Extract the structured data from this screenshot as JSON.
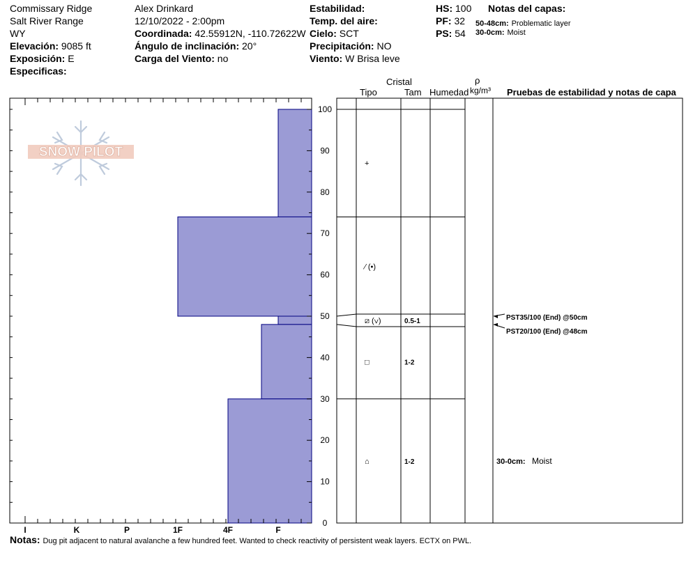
{
  "header": {
    "location": "Commissary Ridge",
    "range": "Salt River Range",
    "state": "WY",
    "elevation_label": "Elevación:",
    "elevation_value": "9085 ft",
    "aspect_label": "Exposición:",
    "aspect_value": "E",
    "specifics_label": "Especificas:",
    "observer": "Alex Drinkard",
    "datetime": "12/10/2022 - 2:00pm",
    "coord_label": "Coordinada:",
    "coord_value": "42.55912N, -110.72622W",
    "slope_label": "Ángulo de inclinación:",
    "slope_value": "20°",
    "wind_load_label": "Carga del Viento:",
    "wind_load_value": "no",
    "stability_label": "Estabilidad:",
    "air_temp_label": "Temp. del aire:",
    "sky_label": "Cielo:",
    "sky_value": "SCT",
    "precip_label": "Precipitación:",
    "precip_value": "NO",
    "wind_label": "Viento:",
    "wind_value": "W Brisa leve",
    "hs_label": "HS:",
    "hs_value": "100",
    "pf_label": "PF:",
    "pf_value": "32",
    "ps_label": "PS:",
    "ps_value": "54",
    "layer_notes_title": "Notas del capas:",
    "layer_notes": [
      {
        "range": "50-48cm:",
        "text": "Problematic layer"
      },
      {
        "range": "30-0cm:",
        "text": "Moist"
      }
    ]
  },
  "logo_text": "SNOW PILOT",
  "table_headers": {
    "crystal": "Cristal",
    "type": "Tipo",
    "size": "Tam",
    "moisture": "Humedad",
    "rho": "ρ",
    "density_unit": "kg/m³",
    "tests": "Pruebas de estabilidad y notas de capa"
  },
  "chart_data": {
    "type": "snow_profile",
    "y_axis": {
      "range": [
        0,
        100
      ],
      "ticks": [
        0,
        10,
        20,
        30,
        40,
        50,
        60,
        70,
        80,
        90,
        100
      ]
    },
    "hardness_scale": [
      "I",
      "K",
      "P",
      "1F",
      "4F",
      "F"
    ],
    "hardness_layers": [
      {
        "top": 100,
        "bottom": 74,
        "hardness": "F"
      },
      {
        "top": 74,
        "bottom": 50,
        "hardness": "1F"
      },
      {
        "top": 50,
        "bottom": 48,
        "hardness": "F"
      },
      {
        "top": 48,
        "bottom": 30,
        "hardness": "F+"
      },
      {
        "top": 30,
        "bottom": 0,
        "hardness": "4F+"
      }
    ],
    "layer_boundaries": [
      100,
      74,
      50,
      48,
      30,
      0
    ],
    "crystal_rows": [
      {
        "depth": 87,
        "type": "+",
        "size": ""
      },
      {
        "depth": 62,
        "type": "⁄ (•)",
        "size": ""
      },
      {
        "depth": 49,
        "type": "⧄ (∨)",
        "size": "0.5-1"
      },
      {
        "depth": 39,
        "type": "□",
        "size": "1-2"
      },
      {
        "depth": 15,
        "type": "⌂",
        "size": "1-2"
      }
    ],
    "tests": [
      {
        "depth": 50,
        "text": "PST35/100 (End) @50cm"
      },
      {
        "depth": 48,
        "text": "PST20/100 (End) @48cm"
      }
    ],
    "column_notes": [
      {
        "depth": 15,
        "range": "30-0cm:",
        "text": "Moist"
      }
    ],
    "fill_color": "#9b9bd5",
    "edge_color": "#000080"
  },
  "notes": {
    "label": "Notas:",
    "text": "Dug pit adjacent to natural avalanche a few hundred feet. Wanted to check reactivity of persistent weak layers. ECTX on PWL."
  }
}
